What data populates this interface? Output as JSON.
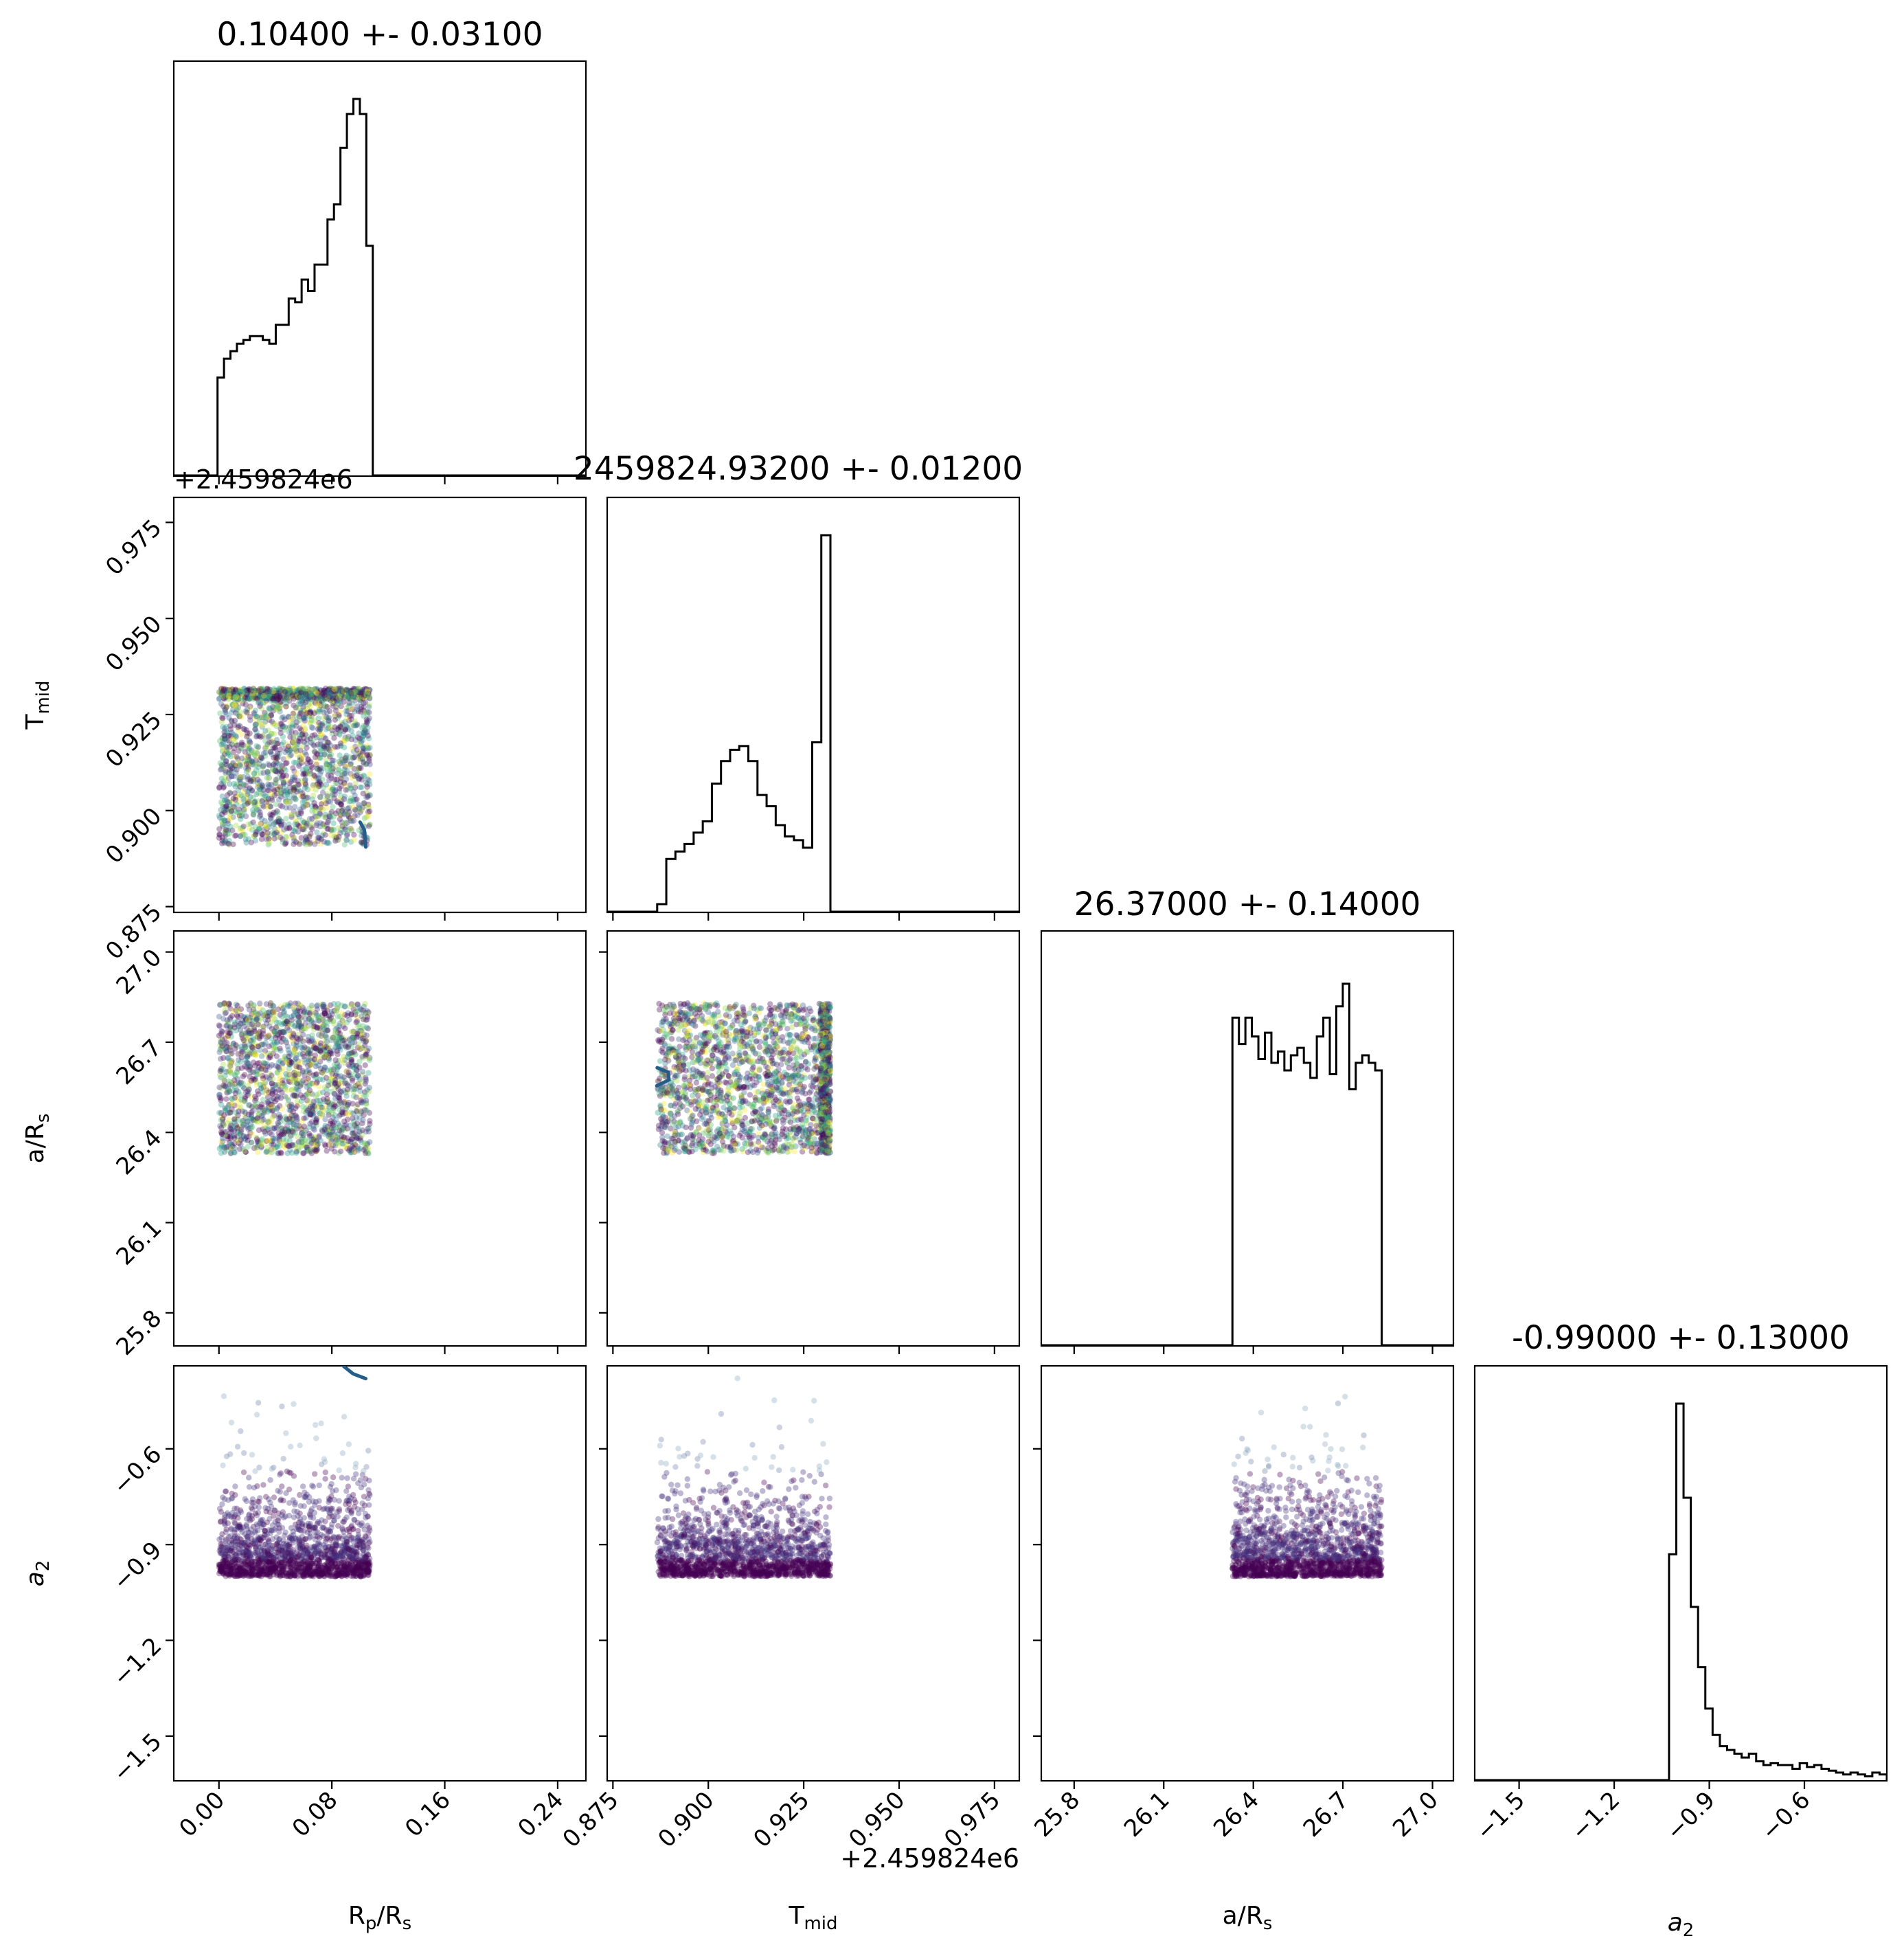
{
  "chart_data": {
    "type": "corner",
    "parameters": [
      {
        "key": "rp",
        "label_main": "R",
        "label_sub": "p",
        "label_tail": "/R",
        "label_tail_sub": "s",
        "title": "0.10400 +- 0.03100",
        "range": [
          -0.032,
          0.26
        ],
        "ticks": [
          0.0,
          0.08,
          0.16,
          0.24
        ],
        "tick_labels": [
          "0.00",
          "0.08",
          "0.16",
          "0.24"
        ]
      },
      {
        "key": "tmid",
        "label_main": "T",
        "label_sub": "mid",
        "label_tail": "",
        "label_tail_sub": "",
        "title": "2459824.93200 +- 0.01200",
        "range": [
          0.8735,
          0.9815
        ],
        "ticks": [
          0.875,
          0.9,
          0.925,
          0.95,
          0.975
        ],
        "tick_labels": [
          "0.875",
          "0.900",
          "0.925",
          "0.950",
          "0.975"
        ],
        "offset_label": "+2.459824e6"
      },
      {
        "key": "ars",
        "label_main": "a/R",
        "label_sub": "s",
        "label_tail": "",
        "label_tail_sub": "",
        "title": "26.37000 +- 0.14000",
        "range": [
          25.69,
          27.07
        ],
        "ticks": [
          25.8,
          26.1,
          26.4,
          26.7,
          27.0
        ],
        "tick_labels": [
          "25.8",
          "26.1",
          "26.4",
          "26.7",
          "27.0"
        ]
      },
      {
        "key": "a2",
        "label_main": "a",
        "label_sub": "2",
        "label_tail": "",
        "label_tail_sub": "",
        "title": "-0.99000 +- 0.13000",
        "range": [
          -1.64,
          -0.34
        ],
        "ticks": [
          -1.5,
          -1.2,
          -0.9,
          -0.6
        ],
        "tick_labels": [
          "−1.5",
          "−1.2",
          "−0.9",
          "−0.6"
        ]
      }
    ],
    "histograms": [
      {
        "param": 0,
        "edges": [
          -0.032,
          0.26
        ],
        "bin_lo": -0.001,
        "bin_hi": 0.109,
        "counts": [
          0.26,
          0.31,
          0.33,
          0.35,
          0.36,
          0.37,
          0.37,
          0.36,
          0.35,
          0.4,
          0.4,
          0.47,
          0.46,
          0.52,
          0.49,
          0.56,
          0.56,
          0.68,
          0.72,
          0.87,
          0.96,
          1.0,
          0.96,
          0.61
        ]
      },
      {
        "param": 1,
        "edges": [
          0.8735,
          0.9815
        ],
        "bin_lo": 0.8866,
        "bin_hi": 0.932,
        "counts": [
          0.02,
          0.14,
          0.16,
          0.18,
          0.21,
          0.24,
          0.34,
          0.4,
          0.43,
          0.44,
          0.4,
          0.31,
          0.28,
          0.23,
          0.2,
          0.19,
          0.17,
          0.45,
          1.0
        ]
      },
      {
        "param": 2,
        "edges": [
          25.69,
          27.07
        ],
        "bin_lo": 26.33,
        "bin_hi": 26.83,
        "counts": [
          0.87,
          0.8,
          0.87,
          0.82,
          0.76,
          0.83,
          0.75,
          0.78,
          0.73,
          0.77,
          0.79,
          0.75,
          0.71,
          0.82,
          0.87,
          0.72,
          0.9,
          0.96,
          0.68,
          0.75,
          0.77,
          0.75,
          0.73
        ]
      },
      {
        "param": 3,
        "edges": [
          -1.64,
          -0.34
        ],
        "bin_lo": -1.027,
        "bin_hi": -0.34,
        "counts": [
          0.6,
          1.0,
          0.75,
          0.46,
          0.3,
          0.19,
          0.12,
          0.09,
          0.08,
          0.07,
          0.06,
          0.07,
          0.05,
          0.04,
          0.045,
          0.04,
          0.04,
          0.03,
          0.045,
          0.035,
          0.04,
          0.03,
          0.025,
          0.02,
          0.015,
          0.02,
          0.015,
          0.01,
          0.02,
          0.015
        ]
      }
    ],
    "scatter_panels": [
      {
        "x": 0,
        "y": 1,
        "x_range": [
          0.0,
          0.107
        ],
        "y_range": [
          0.8911,
          0.9318
        ],
        "n": 1800,
        "seed": 11,
        "dense_band": {
          "axis": "y",
          "lo": 0.929,
          "hi": 0.9318,
          "extra": 500
        },
        "contours": [
          [
            [
              0.104,
              0.8905
            ],
            [
              0.103,
              0.895
            ],
            [
              0.1,
              0.897
            ]
          ]
        ]
      },
      {
        "x": 0,
        "y": 2,
        "x_range": [
          0.0,
          0.107
        ],
        "y_range": [
          26.33,
          26.83
        ],
        "n": 1900,
        "seed": 23,
        "contours": []
      },
      {
        "x": 1,
        "y": 2,
        "x_range": [
          0.8866,
          0.932
        ],
        "y_range": [
          26.33,
          26.83
        ],
        "n": 1900,
        "seed": 37,
        "dense_band": {
          "axis": "x",
          "lo": 0.9293,
          "hi": 0.932,
          "extra": 600
        },
        "contours": [
          [
            [
              0.8866,
              26.615
            ],
            [
              0.8895,
              26.6
            ],
            [
              0.8897,
              26.575
            ],
            [
              0.8865,
              26.555
            ]
          ]
        ]
      },
      {
        "x": 0,
        "y": 3,
        "x_range": [
          0.0,
          0.107
        ],
        "y_range": [
          -1.0,
          -0.34
        ],
        "n": 1700,
        "seed": 41,
        "exp_scale": 0.09,
        "contours": [
          [
            [
              0.088,
              -0.34
            ],
            [
              0.095,
              -0.365
            ],
            [
              0.104,
              -0.38
            ]
          ]
        ]
      },
      {
        "x": 1,
        "y": 3,
        "x_range": [
          0.8866,
          0.932
        ],
        "y_range": [
          -1.0,
          -0.34
        ],
        "n": 1700,
        "seed": 53,
        "exp_scale": 0.09,
        "contours": []
      },
      {
        "x": 2,
        "y": 3,
        "x_range": [
          26.33,
          26.83
        ],
        "y_range": [
          -1.0,
          -0.34
        ],
        "n": 1700,
        "seed": 67,
        "exp_scale": 0.09,
        "contours": []
      }
    ],
    "colormap": "viridis",
    "line_color": "#000000",
    "contour_color": "#255d8a",
    "grid": false,
    "legend": "none"
  }
}
